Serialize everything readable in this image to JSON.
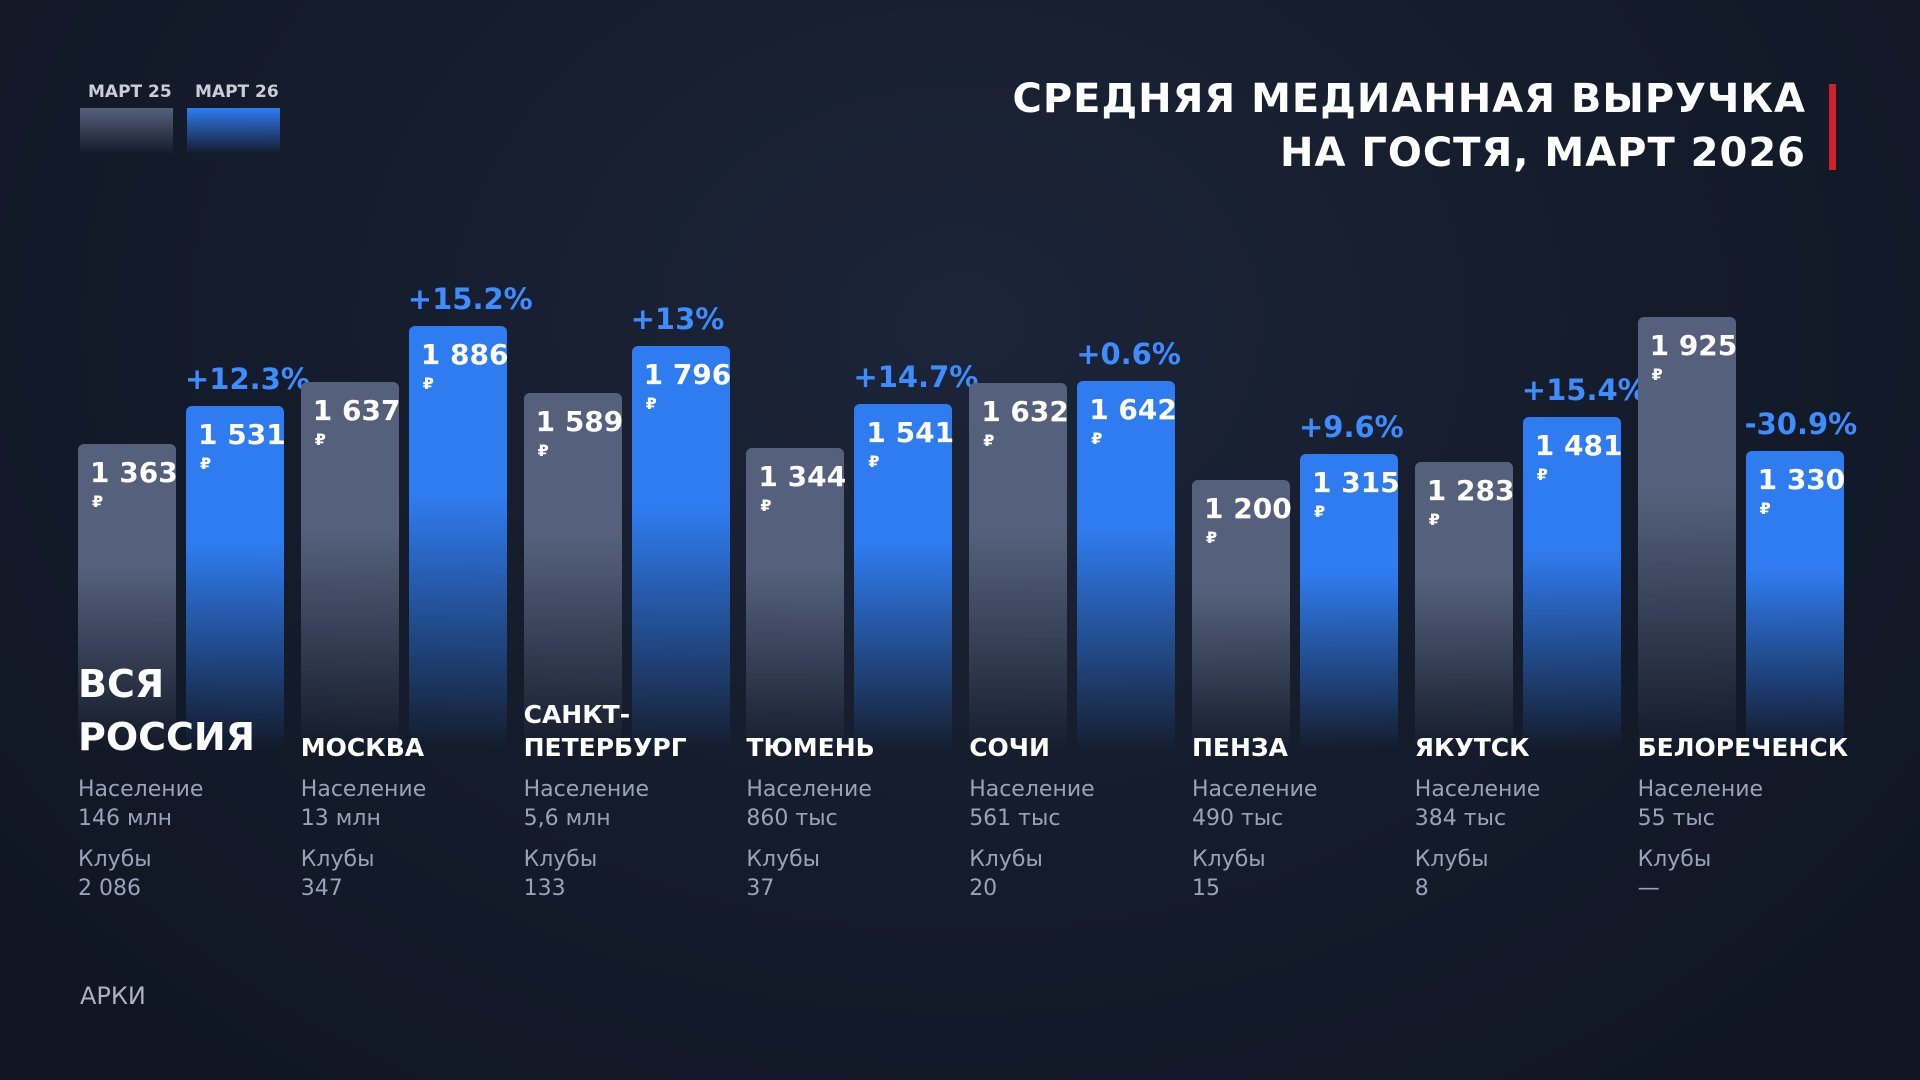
{
  "chart_data": {
    "type": "bar",
    "title": "СРЕДНЯЯ МЕДИАННАЯ ВЫРУЧКА\nНА ГОСТЯ, МАРТ 2026",
    "categories": [
      "ВСЯ\nРОССИЯ",
      "МОСКВА",
      "САНКТ-\nПЕТЕРБУРГ",
      "ТЮМЕНЬ",
      "СОЧИ",
      "ПЕНЗА",
      "ЯКУТСК",
      "БЕЛОРЕЧЕНСК"
    ],
    "currency": "₽",
    "series": [
      {
        "name": "МАРТ 25",
        "color": "#55617c",
        "values": [
          1363,
          1637,
          1589,
          1344,
          1632,
          1200,
          1283,
          1925
        ],
        "value_labels": [
          "1 363",
          "1 637",
          "1 589",
          "1 344",
          "1 632",
          "1 200",
          "1 283",
          "1 925"
        ]
      },
      {
        "name": "МАРТ 26",
        "color": "#2f7cf0",
        "values": [
          1531,
          1886,
          1796,
          1541,
          1642,
          1315,
          1481,
          1330
        ],
        "value_labels": [
          "1 531",
          "1 886",
          "1 796",
          "1 541",
          "1 642",
          "1 315",
          "1 481",
          "1 330"
        ]
      }
    ],
    "change_labels": [
      "+12.3%",
      "+15.2%",
      "+13%",
      "+14.7%",
      "+0.6%",
      "+9.6%",
      "+15.4%",
      "-30.9%"
    ],
    "population_label": "Население",
    "populations": [
      "146 млн",
      "13 млн",
      "5,6 млн",
      "860 тыс",
      "561 тыс",
      "490 тыс",
      "384 тыс",
      "55 тыс"
    ],
    "clubs_label": "Клубы",
    "clubs": [
      "2 086",
      "347",
      "133",
      "37",
      "20",
      "15",
      "8",
      "—"
    ],
    "footer": "АРКИ"
  }
}
